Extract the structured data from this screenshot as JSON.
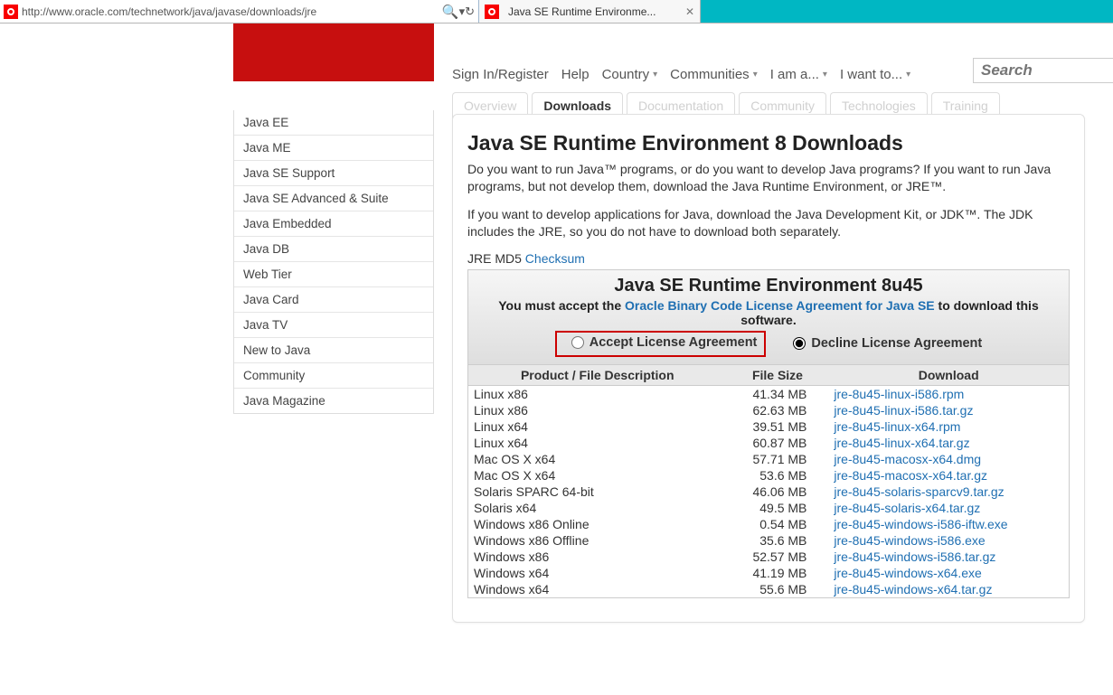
{
  "browser": {
    "url": "http://www.oracle.com/technetwork/java/javase/downloads/jre",
    "tab_title": "Java SE Runtime Environme...",
    "search_placeholder": "Search"
  },
  "top_nav": {
    "signin": "Sign In/Register",
    "help": "Help",
    "country": "Country",
    "communities": "Communities",
    "iam": "I am a...",
    "iwant": "I want to..."
  },
  "page_tabs": {
    "overview": "Overview",
    "downloads": "Downloads",
    "documentation": "Documentation",
    "community": "Community",
    "technologies": "Technologies",
    "training": "Training"
  },
  "sidebar": {
    "items": [
      "Java EE",
      "Java ME",
      "Java SE Support",
      "Java SE Advanced & Suite",
      "Java Embedded",
      "Java DB",
      "Web Tier",
      "Java Card",
      "Java TV",
      "New to Java",
      "Community",
      "Java Magazine"
    ]
  },
  "content": {
    "h1": "Java SE Runtime Environment 8 Downloads",
    "p1": "Do you want to run Java™ programs, or do you want to develop Java programs? If you want to run Java programs, but not develop them, download the Java Runtime Environment, or JRE™.",
    "p2": "If you want to develop applications for Java, download the Java Development Kit, or JDK™. The JDK includes the JRE, so you do not have to download both separately.",
    "md5_prefix": "JRE MD5 ",
    "md5_link": "Checksum"
  },
  "dl": {
    "title": "Java SE Runtime Environment 8u45",
    "must_prefix": "You must accept the ",
    "must_link": "Oracle Binary Code License Agreement for Java SE",
    "must_suffix": " to download this software.",
    "accept": "Accept License Agreement",
    "decline": "Decline License Agreement",
    "col1": "Product / File Description",
    "col2": "File Size",
    "col3": "Download",
    "rows": [
      {
        "desc": "Linux x86",
        "size": "41.34 MB",
        "file": "jre-8u45-linux-i586.rpm"
      },
      {
        "desc": "Linux x86",
        "size": "62.63 MB",
        "file": "jre-8u45-linux-i586.tar.gz"
      },
      {
        "desc": "Linux x64",
        "size": "39.51 MB",
        "file": "jre-8u45-linux-x64.rpm"
      },
      {
        "desc": "Linux x64",
        "size": "60.87 MB",
        "file": "jre-8u45-linux-x64.tar.gz"
      },
      {
        "desc": "Mac OS X x64",
        "size": "57.71 MB",
        "file": "jre-8u45-macosx-x64.dmg"
      },
      {
        "desc": "Mac OS X x64",
        "size": "53.6 MB",
        "file": "jre-8u45-macosx-x64.tar.gz"
      },
      {
        "desc": "Solaris SPARC 64-bit",
        "size": "46.06 MB",
        "file": "jre-8u45-solaris-sparcv9.tar.gz"
      },
      {
        "desc": "Solaris x64",
        "size": "49.5 MB",
        "file": "jre-8u45-solaris-x64.tar.gz"
      },
      {
        "desc": "Windows x86 Online",
        "size": "0.54 MB",
        "file": "jre-8u45-windows-i586-iftw.exe"
      },
      {
        "desc": "Windows x86 Offline",
        "size": "35.6 MB",
        "file": "jre-8u45-windows-i586.exe"
      },
      {
        "desc": "Windows x86",
        "size": "52.57 MB",
        "file": "jre-8u45-windows-i586.tar.gz"
      },
      {
        "desc": "Windows x64",
        "size": "41.19 MB",
        "file": "jre-8u45-windows-x64.exe"
      },
      {
        "desc": "Windows x64",
        "size": "55.6 MB",
        "file": "jre-8u45-windows-x64.tar.gz"
      }
    ]
  }
}
